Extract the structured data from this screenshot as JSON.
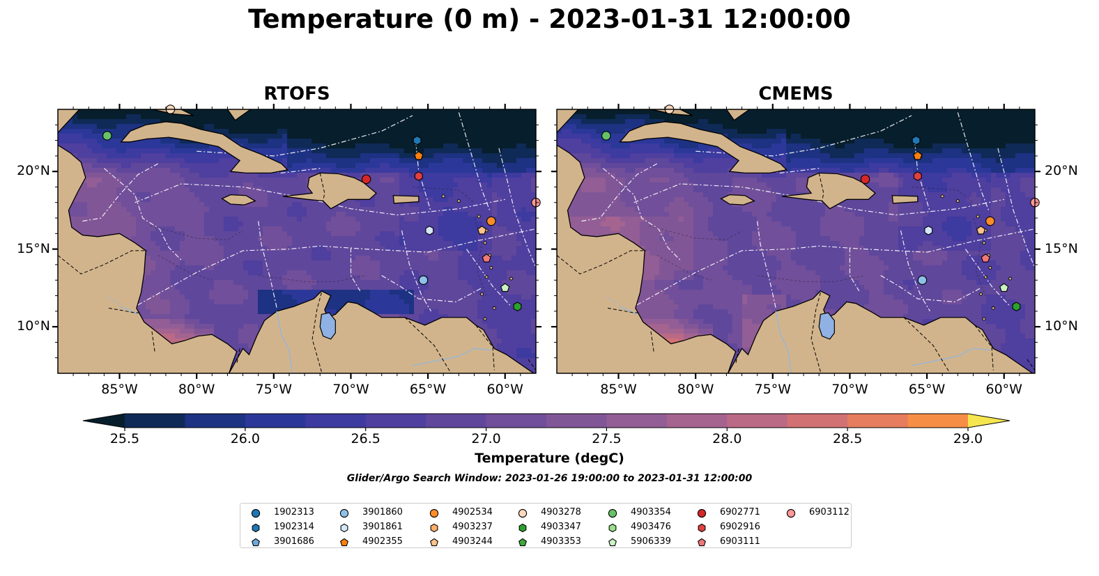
{
  "title": "Temperature (0 m) - 2023-01-31 12:00:00",
  "panels": [
    {
      "title": "RTOFS",
      "variant": "rtofs"
    },
    {
      "title": "CMEMS",
      "variant": "cmems"
    }
  ],
  "map_extent": {
    "lon": [
      -89,
      -58
    ],
    "lat": [
      7,
      24
    ]
  },
  "lon_ticks": [
    {
      "value": -85,
      "label": "85°W"
    },
    {
      "value": -80,
      "label": "80°W"
    },
    {
      "value": -75,
      "label": "75°W"
    },
    {
      "value": -70,
      "label": "70°W"
    },
    {
      "value": -65,
      "label": "65°W"
    },
    {
      "value": -60,
      "label": "60°W"
    }
  ],
  "lat_ticks": [
    {
      "value": 20,
      "label": "20°N"
    },
    {
      "value": 15,
      "label": "15°N"
    },
    {
      "value": 10,
      "label": "10°N"
    }
  ],
  "colorbar": {
    "min": 25.5,
    "max": 29.0,
    "level_step": 0.25,
    "level_start": 25.25,
    "level_end": 29.25,
    "extend": "both",
    "colors": [
      "#071e2c",
      "#0f2a57",
      "#1d3282",
      "#2b3899",
      "#3d3aa0",
      "#4f3f9f",
      "#5f479c",
      "#714f9a",
      "#815697",
      "#925e95",
      "#a56490",
      "#ba6a85",
      "#d27174",
      "#e67d5e",
      "#f68f45",
      "#f9a741",
      "#f8c74c",
      "#f5e64f"
    ],
    "ticks": [
      {
        "value": 25.5,
        "label": "25.5"
      },
      {
        "value": 26.0,
        "label": "26.0"
      },
      {
        "value": 26.5,
        "label": "26.5"
      },
      {
        "value": 27.0,
        "label": "27.0"
      },
      {
        "value": 27.5,
        "label": "27.5"
      },
      {
        "value": 28.0,
        "label": "28.0"
      },
      {
        "value": 28.5,
        "label": "28.5"
      },
      {
        "value": 29.0,
        "label": "29.0"
      }
    ],
    "label": "Temperature (degC)"
  },
  "search_window": "Glider/Argo Search Window: 2023-01-26 19:00:00 to 2023-01-31 12:00:00",
  "land_color": "#d2b48c",
  "floats": [
    {
      "id": "1902313",
      "marker": "circle",
      "color": "#1f77b4"
    },
    {
      "id": "1902314",
      "marker": "hexagon",
      "color": "#1f77b4"
    },
    {
      "id": "3901686",
      "marker": "pentagon",
      "color": "#6ea8dc"
    },
    {
      "id": "3901860",
      "marker": "circle",
      "color": "#8ec1e8"
    },
    {
      "id": "3901861",
      "marker": "hexagon",
      "color": "#d4e8f8"
    },
    {
      "id": "4902355",
      "marker": "pentagon",
      "color": "#ff7f0e"
    },
    {
      "id": "4902534",
      "marker": "circle",
      "color": "#ff8c2a"
    },
    {
      "id": "4903237",
      "marker": "hexagon",
      "color": "#ffae66"
    },
    {
      "id": "4903244",
      "marker": "pentagon",
      "color": "#ffc28c"
    },
    {
      "id": "4903278",
      "marker": "circle",
      "color": "#fcd9bf"
    },
    {
      "id": "4903347",
      "marker": "hexagon",
      "color": "#2ca02c"
    },
    {
      "id": "4903353",
      "marker": "pentagon",
      "color": "#3daa3d"
    },
    {
      "id": "4903354",
      "marker": "circle",
      "color": "#66c266"
    },
    {
      "id": "4903476",
      "marker": "hexagon",
      "color": "#98df8a"
    },
    {
      "id": "5906339",
      "marker": "pentagon",
      "color": "#ccf2c4"
    },
    {
      "id": "6902771",
      "marker": "circle",
      "color": "#d62728"
    },
    {
      "id": "6902916",
      "marker": "hexagon",
      "color": "#e04040"
    },
    {
      "id": "6903111",
      "marker": "pentagon",
      "color": "#f07878"
    },
    {
      "id": "6903112",
      "marker": "circle",
      "color": "#ff9896"
    }
  ],
  "float_positions": [
    {
      "id": "4903354",
      "lon": -85.8,
      "lat": 22.3
    },
    {
      "id": "4903278",
      "lon": -81.7,
      "lat": 24.0
    },
    {
      "id": "1902314",
      "lon": -65.7,
      "lat": 22.0
    },
    {
      "id": "4902355",
      "lon": -65.6,
      "lat": 21.0
    },
    {
      "id": "6902916",
      "lon": -65.6,
      "lat": 19.7
    },
    {
      "id": "6902771",
      "lon": -69.0,
      "lat": 19.5
    },
    {
      "id": "6903112",
      "lon": -58.0,
      "lat": 18.0
    },
    {
      "id": "4902534",
      "lon": -60.9,
      "lat": 16.8
    },
    {
      "id": "3901861",
      "lon": -64.9,
      "lat": 16.2
    },
    {
      "id": "4903244",
      "lon": -61.5,
      "lat": 16.2
    },
    {
      "id": "6903111",
      "lon": -61.2,
      "lat": 14.4
    },
    {
      "id": "3901860",
      "lon": -65.3,
      "lat": 13.0
    },
    {
      "id": "5906339",
      "lon": -60.0,
      "lat": 12.5
    },
    {
      "id": "4903347",
      "lon": -59.2,
      "lat": 11.3
    },
    {
      "id": "3901686",
      "lon": -70.9,
      "lat": 9.8
    }
  ]
}
